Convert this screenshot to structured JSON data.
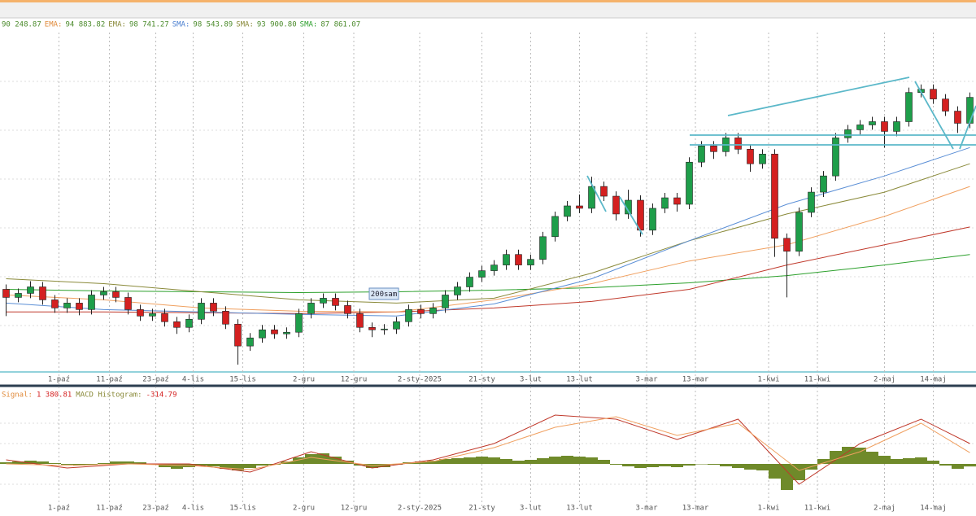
{
  "legend_bar": [
    {
      "text": "90 248.87",
      "color": "#4a8a2a"
    },
    {
      "text": "EMA:",
      "color": "#e08a3a"
    },
    {
      "text": "94 883.82",
      "color": "#4a8a2a"
    },
    {
      "text": "EMA:",
      "color": "#8a8a3a"
    },
    {
      "text": "98 741.27",
      "color": "#4a8a2a"
    },
    {
      "text": "SMA:",
      "color": "#4a7fd0"
    },
    {
      "text": "98 543.89",
      "color": "#4a8a2a"
    },
    {
      "text": "SMA:",
      "color": "#8a8a3a"
    },
    {
      "text": "93 900.80",
      "color": "#4a8a2a"
    },
    {
      "text": "SMA:",
      "color": "#2ca02c"
    },
    {
      "text": "87 861.07",
      "color": "#4a8a2a"
    }
  ],
  "chart_data": [
    {
      "type": "candlestick",
      "open": [
        80500,
        79500,
        80000,
        80800,
        79200,
        78200,
        78800,
        78000,
        79800,
        80200,
        79500,
        78000,
        77200,
        77500,
        76500,
        75800,
        76800,
        78800,
        77800,
        76200,
        73500,
        74500,
        75500,
        75000,
        75200,
        77500,
        78800,
        79400,
        78500,
        77500,
        75800,
        75500,
        75600,
        76500,
        78000,
        77500,
        78200,
        79800,
        80800,
        82000,
        82800,
        83500,
        84800,
        83500,
        84200,
        87000,
        89500,
        90800,
        90500,
        93200,
        92000,
        89800,
        91500,
        87800,
        90500,
        91800,
        91000,
        96200,
        98200,
        97500,
        99200,
        97800,
        96000,
        97200,
        86800,
        85200,
        90000,
        92500,
        94500,
        99200,
        100200,
        100800,
        101200,
        100000,
        101200,
        104800,
        105200,
        104000,
        102500,
        101000
      ],
      "high": [
        81100,
        80600,
        81500,
        81400,
        79800,
        79400,
        79400,
        80400,
        80800,
        80800,
        80100,
        78600,
        78100,
        78100,
        77100,
        77400,
        79400,
        79400,
        78400,
        76800,
        75100,
        76100,
        76100,
        75800,
        78100,
        79400,
        80000,
        80000,
        79100,
        78100,
        76400,
        76200,
        77100,
        78600,
        78600,
        78800,
        80400,
        81400,
        82600,
        83400,
        84100,
        85400,
        85400,
        84800,
        87600,
        90100,
        91400,
        92200,
        94400,
        93800,
        92600,
        92800,
        92100,
        91100,
        92400,
        92400,
        96800,
        98800,
        98800,
        99800,
        99800,
        98400,
        97800,
        97800,
        87400,
        90600,
        93100,
        95100,
        99800,
        100800,
        101400,
        101800,
        101800,
        101800,
        105400,
        105800,
        105800,
        104600,
        103100,
        104800
      ],
      "low": [
        77200,
        78900,
        79400,
        78600,
        77600,
        77600,
        77300,
        77400,
        79200,
        78900,
        77400,
        76600,
        76600,
        75900,
        75000,
        75200,
        76200,
        77200,
        75600,
        71200,
        72900,
        73900,
        74400,
        74400,
        74600,
        76900,
        78200,
        77900,
        76900,
        75200,
        74600,
        74900,
        75000,
        75900,
        76900,
        76900,
        77600,
        79200,
        80200,
        81400,
        82200,
        82900,
        82900,
        82900,
        83600,
        86400,
        88900,
        89900,
        89900,
        91400,
        89000,
        89200,
        87000,
        87200,
        89900,
        90100,
        90400,
        95600,
        96600,
        96900,
        97200,
        95000,
        95400,
        84500,
        79500,
        84600,
        89400,
        91900,
        93900,
        98600,
        99600,
        100200,
        98000,
        99400,
        100600,
        104200,
        103400,
        101900,
        99800,
        100400
      ],
      "close": [
        79500,
        80000,
        80800,
        79200,
        78200,
        78800,
        78000,
        79800,
        80200,
        79500,
        78000,
        77200,
        77500,
        76500,
        75800,
        76800,
        78800,
        77800,
        76200,
        73500,
        74500,
        75500,
        75000,
        75200,
        77500,
        78800,
        79400,
        78500,
        77500,
        75800,
        75500,
        75600,
        76500,
        78000,
        77500,
        78200,
        79800,
        80800,
        82000,
        82800,
        83500,
        84800,
        83500,
        84200,
        87000,
        89500,
        90800,
        90500,
        93200,
        92000,
        89800,
        91500,
        87800,
        90500,
        91800,
        91000,
        96200,
        98200,
        97500,
        99200,
        97800,
        96000,
        97200,
        86800,
        85200,
        90000,
        92500,
        94500,
        99200,
        100200,
        100800,
        101200,
        100000,
        101200,
        104800,
        105200,
        104000,
        102500,
        101000,
        104200
      ],
      "up_color": "#1e9e4a",
      "down_color": "#d42020",
      "xlim": [
        -0.5,
        79.5
      ],
      "ylim": [
        70500,
        112000
      ],
      "xticks": [
        {
          "value": 4.33,
          "label": "1-paź"
        },
        {
          "value": 8.47,
          "label": "11-paź"
        },
        {
          "value": 12.27,
          "label": "23-paź"
        },
        {
          "value": 15.33,
          "label": "4-lis"
        },
        {
          "value": 19.4,
          "label": "15-lis"
        },
        {
          "value": 24.4,
          "label": "2-gru"
        },
        {
          "value": 28.5,
          "label": "12-gru"
        },
        {
          "value": 33.9,
          "label": "2-sty-2025"
        },
        {
          "value": 39,
          "label": "21-sty"
        },
        {
          "value": 43,
          "label": "3-lut"
        },
        {
          "value": 47,
          "label": "13-lut"
        },
        {
          "value": 52.5,
          "label": "3-mar"
        },
        {
          "value": 56.5,
          "label": "13-mar"
        },
        {
          "value": 62.5,
          "label": "1-kwi"
        },
        {
          "value": 66.5,
          "label": "11-kwi"
        },
        {
          "value": 72,
          "label": "2-maj"
        },
        {
          "value": 76,
          "label": "14-maj"
        }
      ],
      "lines": [
        {
          "color": "#2ca02c",
          "x": [
            0,
            8,
            16,
            24,
            32,
            40,
            48,
            56,
            64,
            72,
            79
          ],
          "values": [
            80500,
            80300,
            80200,
            80100,
            80200,
            80400,
            80700,
            81300,
            82200,
            83500,
            84800
          ]
        },
        {
          "color": "#c0392b",
          "x": [
            0,
            8,
            16,
            24,
            32,
            40,
            48,
            56,
            64,
            72,
            79
          ],
          "values": [
            77700,
            77700,
            77600,
            77500,
            77700,
            78200,
            79000,
            80500,
            83500,
            86000,
            88200
          ]
        },
        {
          "color": "#8a8a3a",
          "x": [
            0,
            8,
            16,
            24,
            32,
            40,
            48,
            56,
            64,
            72,
            79
          ],
          "values": [
            81800,
            81200,
            80200,
            79200,
            78800,
            79400,
            82500,
            86500,
            89800,
            92500,
            96000
          ]
        },
        {
          "color": "#f0a060",
          "x": [
            0,
            8,
            16,
            24,
            32,
            40,
            48,
            56,
            64,
            72,
            79
          ],
          "values": [
            79800,
            79200,
            78200,
            77800,
            77700,
            79200,
            81200,
            84000,
            86000,
            89500,
            93200
          ]
        },
        {
          "color": "#5b8fd6",
          "x": [
            0,
            8,
            16,
            24,
            32,
            40,
            48,
            56,
            64,
            72,
            79
          ],
          "values": [
            78800,
            78000,
            77700,
            77400,
            77200,
            78700,
            81800,
            86500,
            91000,
            94500,
            98000
          ]
        }
      ],
      "annotation": "200sam"
    },
    {
      "type": "macd",
      "header": [
        {
          "text": "Signal:",
          "color": "#e08a3a"
        },
        {
          "text": "1 380.81",
          "color": "#d42020"
        },
        {
          "text": "MACD Histogram:",
          "color": "#8a8a3a"
        },
        {
          "text": "-314.79",
          "color": "#d42020"
        }
      ],
      "xlim": [
        -0.5,
        79.5
      ],
      "ylim": [
        -5500,
        9000
      ],
      "histogram": {
        "color": "#6f8a2a",
        "values": [
          200,
          300,
          400,
          300,
          100,
          -100,
          -200,
          -100,
          100,
          300,
          300,
          200,
          -100,
          -400,
          -600,
          -400,
          -200,
          -300,
          -600,
          -800,
          -500,
          -200,
          -100,
          300,
          800,
          1200,
          1300,
          900,
          400,
          -200,
          -500,
          -400,
          -100,
          200,
          300,
          400,
          600,
          700,
          800,
          900,
          800,
          600,
          400,
          500,
          700,
          900,
          1000,
          900,
          800,
          500,
          -100,
          -300,
          -500,
          -400,
          -300,
          -400,
          -200,
          0,
          -100,
          -300,
          -500,
          -700,
          -800,
          -1800,
          -3200,
          -2000,
          -700,
          600,
          1600,
          2100,
          2000,
          1500,
          1000,
          600,
          700,
          800,
          400,
          -200,
          -600,
          -314.79
        ]
      },
      "series": [
        {
          "color": "#c0392b",
          "x": [
            0,
            5,
            10,
            15,
            20,
            25,
            30,
            35,
            40,
            45,
            50,
            55,
            60,
            65,
            70,
            75,
            79
          ],
          "values": [
            500,
            -500,
            0,
            0,
            -1000,
            1500,
            -500,
            500,
            2500,
            6000,
            5500,
            3000,
            5500,
            -2500,
            2500,
            5500,
            2500
          ]
        },
        {
          "color": "#f0a060",
          "x": [
            0,
            5,
            10,
            15,
            20,
            25,
            30,
            35,
            40,
            45,
            50,
            55,
            60,
            65,
            70,
            75,
            79
          ],
          "values": [
            0,
            -200,
            0,
            -200,
            -700,
            800,
            -200,
            300,
            2000,
            4500,
            5800,
            3500,
            5000,
            -800,
            1500,
            5000,
            1380.81
          ]
        }
      ]
    }
  ]
}
